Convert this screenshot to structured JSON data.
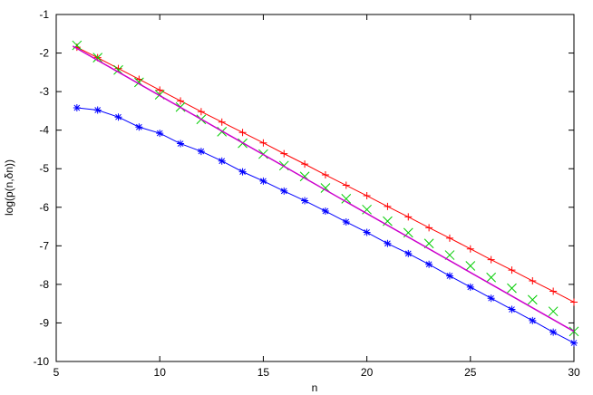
{
  "chart_data": {
    "type": "line",
    "title": "",
    "xlabel": "n",
    "ylabel": "log(p(n,δn))",
    "xlim": [
      5,
      30
    ],
    "ylim": [
      -10,
      -1
    ],
    "xticks": [
      5,
      10,
      15,
      20,
      25,
      30
    ],
    "yticks": [
      -10,
      -9,
      -8,
      -7,
      -6,
      -5,
      -4,
      -3,
      -2,
      -1
    ],
    "grid": false,
    "legend": "none",
    "series": [
      {
        "color": "#ff0000",
        "marker": "plus",
        "line": true,
        "x": [
          6,
          7,
          8,
          9,
          10,
          11,
          12,
          13,
          14,
          15,
          16,
          17,
          18,
          19,
          20,
          21,
          22,
          23,
          24,
          25,
          26,
          27,
          28,
          29,
          30
        ],
        "y": [
          -1.85,
          -2.12,
          -2.4,
          -2.68,
          -2.96,
          -3.24,
          -3.52,
          -3.79,
          -4.06,
          -4.33,
          -4.61,
          -4.88,
          -5.16,
          -5.43,
          -5.7,
          -5.98,
          -6.25,
          -6.53,
          -6.8,
          -7.08,
          -7.36,
          -7.63,
          -7.91,
          -8.18,
          -8.46
        ]
      },
      {
        "color": "#00cc00",
        "marker": "x",
        "line": false,
        "x": [
          6,
          7,
          8,
          9,
          10,
          11,
          12,
          13,
          14,
          15,
          16,
          17,
          18,
          19,
          20,
          21,
          22,
          23,
          24,
          25,
          26,
          27,
          28,
          29,
          30
        ],
        "y": [
          -1.8,
          -2.12,
          -2.44,
          -2.76,
          -3.08,
          -3.4,
          -3.72,
          -4.04,
          -4.34,
          -4.62,
          -4.92,
          -5.2,
          -5.5,
          -5.78,
          -6.06,
          -6.36,
          -6.66,
          -6.94,
          -7.24,
          -7.52,
          -7.82,
          -8.1,
          -8.4,
          -8.7,
          -9.22
        ]
      },
      {
        "color": "#0000ff",
        "marker": "star",
        "line": true,
        "x": [
          6,
          7,
          8,
          9,
          10,
          11,
          12,
          13,
          14,
          15,
          16,
          17,
          18,
          19,
          20,
          21,
          22,
          23,
          24,
          25,
          26,
          27,
          28,
          29,
          30
        ],
        "y": [
          -3.42,
          -3.48,
          -3.66,
          -3.92,
          -4.08,
          -4.35,
          -4.55,
          -4.8,
          -5.08,
          -5.32,
          -5.58,
          -5.83,
          -6.1,
          -6.38,
          -6.65,
          -6.94,
          -7.2,
          -7.48,
          -7.78,
          -8.07,
          -8.36,
          -8.65,
          -8.94,
          -9.24,
          -9.52
        ]
      },
      {
        "color": "#cc00cc",
        "marker": "none",
        "line": true,
        "x": [
          5.8,
          30
        ],
        "y": [
          -1.82,
          -9.22
        ]
      }
    ]
  }
}
